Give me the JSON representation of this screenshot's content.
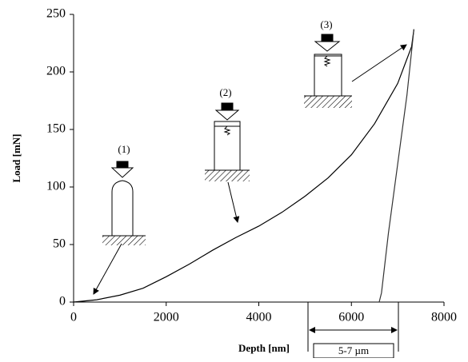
{
  "chart_data": {
    "type": "line",
    "xlabel": "Depth [nm]",
    "ylabel": "Load [mN]",
    "xlim": [
      0,
      8000
    ],
    "xticks": [
      0,
      2000,
      4000,
      6000,
      8000
    ],
    "ylim": [
      0,
      250
    ],
    "yticks": [
      0,
      50,
      100,
      150,
      200,
      250
    ],
    "grid": false,
    "series": [
      {
        "color": "#000000",
        "x": [
          0,
          500,
          1000,
          1500,
          2000,
          2500,
          3000,
          3500,
          4000,
          4500,
          5000,
          5500,
          6000,
          6500,
          7000,
          7300,
          7350
        ],
        "values": [
          0,
          2,
          6,
          12,
          22,
          33,
          45,
          56,
          66,
          78,
          92,
          108,
          128,
          155,
          190,
          222,
          237
        ]
      },
      {
        "color": "#333333",
        "x": [
          7350,
          7200,
          7000,
          6800,
          6650,
          6600
        ],
        "values": [
          237,
          180,
          120,
          60,
          8,
          0
        ]
      }
    ],
    "annotations": [
      "(1)",
      "(2)",
      "(3)",
      "5-7 µm"
    ]
  }
}
